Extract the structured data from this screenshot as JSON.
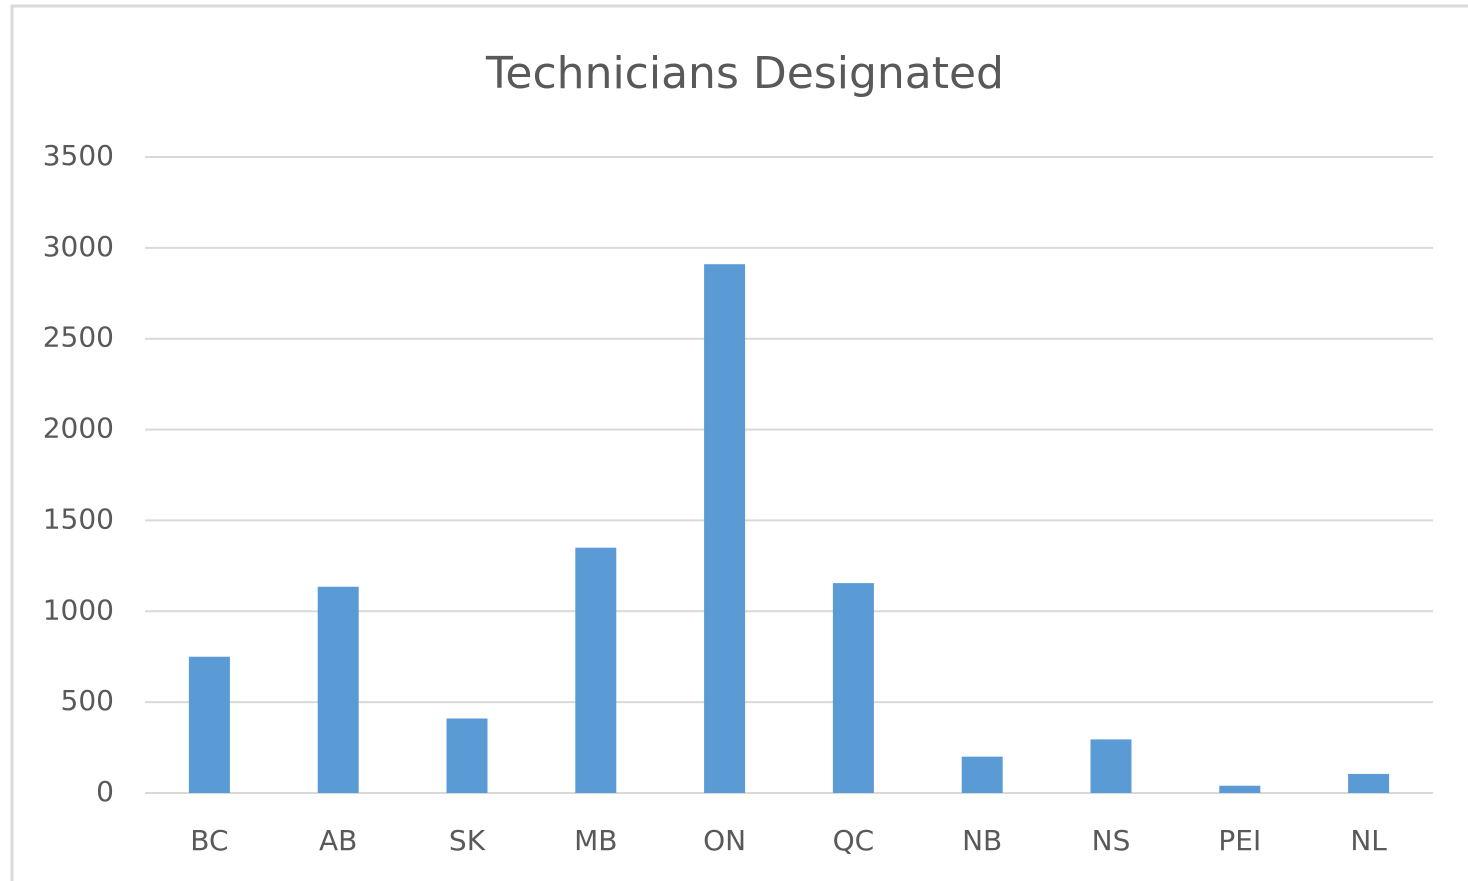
{
  "chart_data": {
    "type": "bar",
    "title": "Technicians Designated",
    "categories": [
      "BC",
      "AB",
      "SK",
      "MB",
      "ON",
      "QC",
      "NB",
      "NS",
      "PEI",
      "NL"
    ],
    "values": [
      750,
      1135,
      410,
      1350,
      2910,
      1155,
      200,
      295,
      40,
      105
    ],
    "color": "#5b9bd5",
    "ylim": [
      0,
      3500
    ],
    "yticks": [
      0,
      500,
      1000,
      1500,
      2000,
      2500,
      3000,
      3500
    ],
    "grid": true
  }
}
